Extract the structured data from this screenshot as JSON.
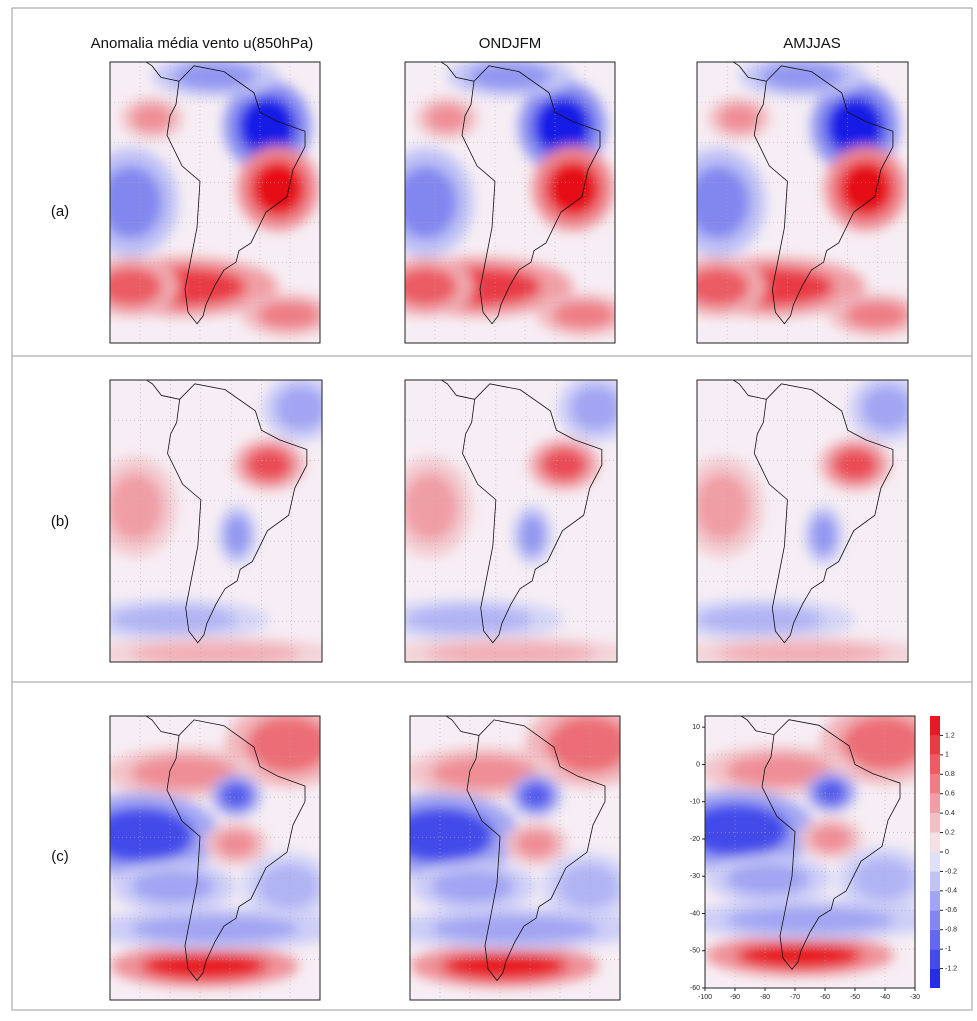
{
  "columns": [
    "Anomalia média vento u(850hPa)",
    "ONDJFM",
    "AMJJAS"
  ],
  "rows": [
    "(a)",
    "(b)",
    "(c)"
  ],
  "colorbar": {
    "lim": [
      -1.4,
      1.4
    ],
    "ticks": [
      1.2,
      1,
      0.8,
      0.6,
      0.4,
      0.2,
      0,
      -0.2,
      -0.4,
      -0.6,
      -0.8,
      -1,
      -1.2
    ]
  },
  "map_axes": {
    "xlim": [
      -100,
      -30
    ],
    "xticks": [
      -100,
      -90,
      -80,
      -70,
      -60,
      -50,
      -40,
      -30
    ],
    "ylim": [
      -60,
      13
    ],
    "yticks": [
      10,
      0,
      -10,
      -20,
      -30,
      -40,
      -50,
      -60
    ]
  }
}
